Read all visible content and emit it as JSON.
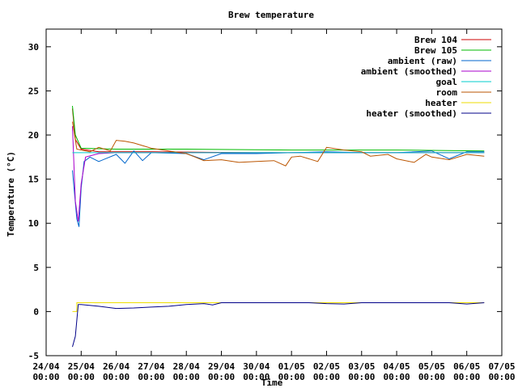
{
  "chart_data": {
    "type": "line",
    "title": "Brew temperature",
    "xlabel": "Time",
    "ylabel": "Temperature (°C)",
    "xlim": [
      "2024-04-24T00:00",
      "2024-05-07T00:00"
    ],
    "ylim": [
      -5,
      32
    ],
    "yticks": [
      -5,
      0,
      5,
      10,
      15,
      20,
      25,
      30
    ],
    "xtick_labels": [
      [
        "24/04",
        "00:00"
      ],
      [
        "25/04",
        "00:00"
      ],
      [
        "26/04",
        "00:00"
      ],
      [
        "27/04",
        "00:00"
      ],
      [
        "28/04",
        "00:00"
      ],
      [
        "29/04",
        "00:00"
      ],
      [
        "30/04",
        "00:00"
      ],
      [
        "01/05",
        "00:00"
      ],
      [
        "02/05",
        "00:00"
      ],
      [
        "03/05",
        "00:00"
      ],
      [
        "04/05",
        "00:00"
      ],
      [
        "05/05",
        "00:00"
      ],
      [
        "06/05",
        "00:00"
      ],
      [
        "07/05",
        "00:00"
      ]
    ],
    "grid": false,
    "legend": "top-right",
    "series": [
      {
        "name": "Brew 104",
        "color": "#cc0000",
        "points": [
          [
            "2024-04-24T18:00",
            23
          ],
          [
            "2024-04-24T20:00",
            19.5
          ],
          [
            "2024-04-25T00:00",
            18.4
          ],
          [
            "2024-04-25T12:00",
            18.1
          ],
          [
            "2024-04-27T00:00",
            18.1
          ],
          [
            "2024-04-30T00:00",
            18.0
          ],
          [
            "2024-05-03T00:00",
            18.0
          ],
          [
            "2024-05-06T12:00",
            18.0
          ]
        ]
      },
      {
        "name": "Brew 105",
        "color": "#00bb00",
        "points": [
          [
            "2024-04-24T18:00",
            23.3
          ],
          [
            "2024-04-24T20:00",
            20
          ],
          [
            "2024-04-25T00:00",
            18.5
          ],
          [
            "2024-04-26T00:00",
            18.4
          ],
          [
            "2024-04-28T00:00",
            18.4
          ],
          [
            "2024-05-01T00:00",
            18.3
          ],
          [
            "2024-05-04T00:00",
            18.3
          ],
          [
            "2024-05-06T12:00",
            18.2
          ]
        ]
      },
      {
        "name": "ambient (raw)",
        "color": "#0066cc",
        "points": [
          [
            "2024-04-24T18:00",
            16
          ],
          [
            "2024-04-24T21:00",
            10.5
          ],
          [
            "2024-04-24T22:30",
            9.6
          ],
          [
            "2024-04-25T00:00",
            14
          ],
          [
            "2024-04-25T02:00",
            17
          ],
          [
            "2024-04-25T06:00",
            17.5
          ],
          [
            "2024-04-25T12:00",
            17.0
          ],
          [
            "2024-04-26T00:00",
            17.8
          ],
          [
            "2024-04-26T06:00",
            16.8
          ],
          [
            "2024-04-26T12:00",
            18.2
          ],
          [
            "2024-04-26T18:00",
            17.1
          ],
          [
            "2024-04-27T00:00",
            18.0
          ],
          [
            "2024-04-28T00:00",
            17.9
          ],
          [
            "2024-04-28T12:00",
            17.2
          ],
          [
            "2024-04-29T00:00",
            17.9
          ],
          [
            "2024-04-30T00:00",
            17.9
          ],
          [
            "2024-05-01T00:00",
            18.0
          ],
          [
            "2024-05-02T00:00",
            18.1
          ],
          [
            "2024-05-03T00:00",
            18.0
          ],
          [
            "2024-05-04T00:00",
            18.0
          ],
          [
            "2024-05-05T00:00",
            18.2
          ],
          [
            "2024-05-05T12:00",
            17.3
          ],
          [
            "2024-05-06T00:00",
            18.1
          ],
          [
            "2024-05-06T12:00",
            18.1
          ]
        ]
      },
      {
        "name": "ambient (smoothed)",
        "color": "#aa00cc",
        "points": [
          [
            "2024-04-24T18:00",
            21
          ],
          [
            "2024-04-24T20:00",
            12.5
          ],
          [
            "2024-04-24T22:00",
            10.2
          ],
          [
            "2024-04-25T00:00",
            14.5
          ],
          [
            "2024-04-25T03:00",
            17.5
          ],
          [
            "2024-04-25T12:00",
            17.9
          ],
          [
            "2024-04-26T00:00",
            18.0
          ],
          [
            "2024-04-28T00:00",
            18.0
          ],
          [
            "2024-05-01T00:00",
            18.0
          ],
          [
            "2024-05-04T00:00",
            18.0
          ],
          [
            "2024-05-06T12:00",
            18.0
          ]
        ]
      },
      {
        "name": "goal",
        "color": "#00cccc",
        "points": [
          [
            "2024-04-24T18:00",
            18
          ],
          [
            "2024-05-06T12:00",
            18
          ]
        ]
      },
      {
        "name": "room",
        "color": "#bb5500",
        "points": [
          [
            "2024-04-24T18:00",
            21.5
          ],
          [
            "2024-04-24T21:00",
            18.4
          ],
          [
            "2024-04-25T06:00",
            18.1
          ],
          [
            "2024-04-25T12:00",
            18.6
          ],
          [
            "2024-04-25T20:00",
            18.2
          ],
          [
            "2024-04-26T00:00",
            19.4
          ],
          [
            "2024-04-26T06:00",
            19.3
          ],
          [
            "2024-04-26T12:00",
            19.1
          ],
          [
            "2024-04-26T18:00",
            18.8
          ],
          [
            "2024-04-27T00:00",
            18.5
          ],
          [
            "2024-04-27T12:00",
            18.2
          ],
          [
            "2024-04-28T00:00",
            17.9
          ],
          [
            "2024-04-28T06:00",
            17.5
          ],
          [
            "2024-04-28T12:00",
            17.1
          ],
          [
            "2024-04-29T00:00",
            17.2
          ],
          [
            "2024-04-29T12:00",
            16.9
          ],
          [
            "2024-04-30T00:00",
            17.0
          ],
          [
            "2024-04-30T12:00",
            17.1
          ],
          [
            "2024-04-30T20:00",
            16.5
          ],
          [
            "2024-05-01T00:00",
            17.5
          ],
          [
            "2024-05-01T06:00",
            17.6
          ],
          [
            "2024-05-01T18:00",
            17.0
          ],
          [
            "2024-05-02T00:00",
            18.6
          ],
          [
            "2024-05-02T12:00",
            18.3
          ],
          [
            "2024-05-03T00:00",
            18.1
          ],
          [
            "2024-05-03T06:00",
            17.6
          ],
          [
            "2024-05-03T18:00",
            17.8
          ],
          [
            "2024-05-04T00:00",
            17.3
          ],
          [
            "2024-05-04T12:00",
            16.9
          ],
          [
            "2024-05-04T20:00",
            17.8
          ],
          [
            "2024-05-05T00:00",
            17.5
          ],
          [
            "2024-05-05T12:00",
            17.2
          ],
          [
            "2024-05-06T00:00",
            17.8
          ],
          [
            "2024-05-06T12:00",
            17.6
          ]
        ]
      },
      {
        "name": "heater",
        "color": "#eedd00",
        "points": [
          [
            "2024-04-24T18:00",
            0
          ],
          [
            "2024-04-24T21:00",
            0
          ],
          [
            "2024-04-24T21:00",
            1
          ],
          [
            "2024-05-06T12:00",
            1
          ]
        ]
      },
      {
        "name": "heater (smoothed)",
        "color": "#000088",
        "points": [
          [
            "2024-04-24T18:00",
            -4
          ],
          [
            "2024-04-24T20:00",
            -2.8
          ],
          [
            "2024-04-24T22:00",
            0.8
          ],
          [
            "2024-04-25T00:00",
            0.8
          ],
          [
            "2024-04-25T12:00",
            0.6
          ],
          [
            "2024-04-26T00:00",
            0.35
          ],
          [
            "2024-04-26T12:00",
            0.4
          ],
          [
            "2024-04-27T00:00",
            0.5
          ],
          [
            "2024-04-27T12:00",
            0.6
          ],
          [
            "2024-04-28T00:00",
            0.8
          ],
          [
            "2024-04-28T12:00",
            0.9
          ],
          [
            "2024-04-28T18:00",
            0.75
          ],
          [
            "2024-04-29T00:00",
            1.0
          ],
          [
            "2024-05-01T12:00",
            1.0
          ],
          [
            "2024-05-02T00:00",
            0.9
          ],
          [
            "2024-05-02T12:00",
            0.85
          ],
          [
            "2024-05-03T00:00",
            1.0
          ],
          [
            "2024-05-05T12:00",
            1.0
          ],
          [
            "2024-05-06T00:00",
            0.85
          ],
          [
            "2024-05-06T12:00",
            1.0
          ]
        ]
      }
    ]
  }
}
